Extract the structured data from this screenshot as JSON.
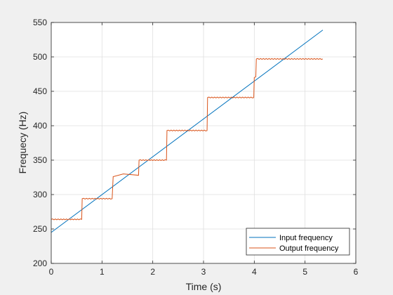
{
  "chart_data": {
    "type": "line",
    "title": "",
    "xlabel": "Time (s)",
    "ylabel": "Frequecy (Hz)",
    "xlim": [
      0,
      6
    ],
    "ylim": [
      200,
      550
    ],
    "xticks": [
      0,
      1,
      2,
      3,
      4,
      5,
      6
    ],
    "yticks": [
      200,
      250,
      300,
      350,
      400,
      450,
      500,
      550
    ],
    "grid": true,
    "legend_position": "bottom-right",
    "series": [
      {
        "name": "Input frequency",
        "color": "#0072BD",
        "style": "straight",
        "x": [
          0,
          5.35
        ],
        "y": [
          245,
          539
        ]
      },
      {
        "name": "Output frequency",
        "color": "#D95319",
        "style": "step",
        "x": [
          0,
          0.6,
          0.61,
          1.2,
          1.22,
          1.42,
          1.72,
          1.73,
          2.27,
          2.28,
          3.07,
          3.08,
          3.99,
          4.0,
          4.03,
          4.04,
          5.35
        ],
        "y": [
          264,
          264,
          294,
          294,
          326,
          330,
          328,
          350,
          350,
          393,
          393,
          441,
          441,
          470,
          471,
          497,
          497
        ]
      }
    ]
  }
}
